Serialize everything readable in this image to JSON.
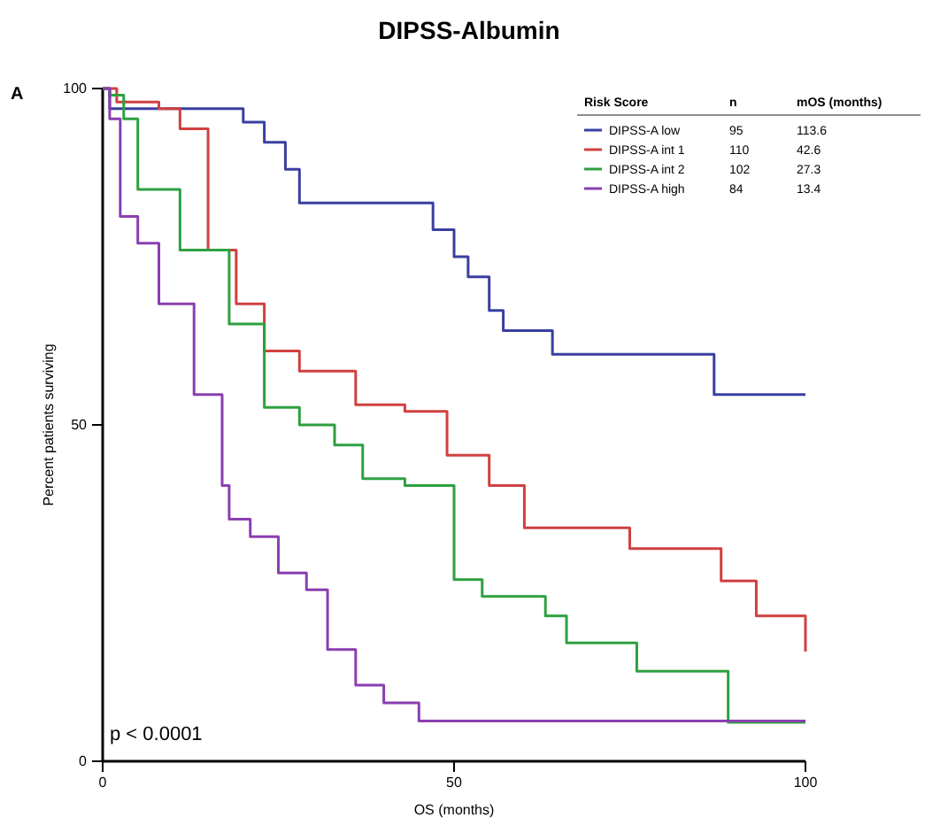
{
  "chart_data": {
    "type": "step",
    "title": "DIPSS-Albumin",
    "xlabel": "OS (months)",
    "ylabel": "Percent patients surviving",
    "xlim": [
      0,
      100
    ],
    "xticks": [
      0,
      50,
      100
    ],
    "ylim": [
      0,
      100
    ],
    "yticks": [
      0,
      50,
      100
    ],
    "grid": false,
    "legend": "top right",
    "legend_title": "Risk Score",
    "marker": "none",
    "line_style": "solid",
    "annotations": [
      "A",
      "p < 0.0001",
      "n",
      "mOS (months)",
      "95",
      "113.6",
      "110",
      "42.6",
      "102",
      "27.3",
      "84",
      "13.4"
    ],
    "series": [
      {
        "name": "DIPSS-A low",
        "color": "#3a3fa0",
        "x": [
          0,
          1,
          18,
          20,
          23,
          26,
          28,
          45,
          47,
          50,
          52,
          55,
          57,
          64,
          87,
          100
        ],
        "values": [
          100,
          97,
          97,
          95,
          92,
          88,
          83,
          83,
          79,
          75,
          72,
          67,
          64,
          60.5,
          54.5,
          54.5
        ]
      },
      {
        "name": "DIPSS-A int 1",
        "color": "#d04040",
        "x": [
          0,
          2,
          8,
          11,
          15,
          19,
          23,
          28,
          36,
          43,
          49,
          55,
          60,
          75,
          88,
          93,
          100
        ],
        "values": [
          100,
          98,
          97,
          94,
          76,
          68,
          61,
          58,
          53,
          52,
          45.5,
          41,
          34.7,
          31.6,
          26.8,
          21.6,
          16.3
        ]
      },
      {
        "name": "DIPSS-A int 2",
        "color": "#2ea040",
        "x": [
          0,
          1,
          3,
          5,
          11,
          18,
          23,
          28,
          33,
          37,
          43,
          50,
          54,
          63,
          66,
          76,
          89,
          100
        ],
        "values": [
          100,
          99,
          95.5,
          85,
          76,
          65,
          52.6,
          50,
          47,
          42,
          41,
          27,
          24.5,
          21.6,
          17.6,
          13.4,
          5.8,
          5.8
        ]
      },
      {
        "name": "DIPSS-A high",
        "color": "#8a3fb0",
        "x": [
          0,
          1,
          2.5,
          5,
          8,
          13,
          17,
          18,
          21,
          25,
          29,
          32,
          36,
          40,
          45,
          100
        ],
        "values": [
          100,
          95.5,
          81,
          77,
          68,
          54.5,
          41,
          36,
          33.4,
          28,
          25.5,
          16.6,
          11.3,
          8.7,
          6,
          6
        ]
      }
    ]
  }
}
